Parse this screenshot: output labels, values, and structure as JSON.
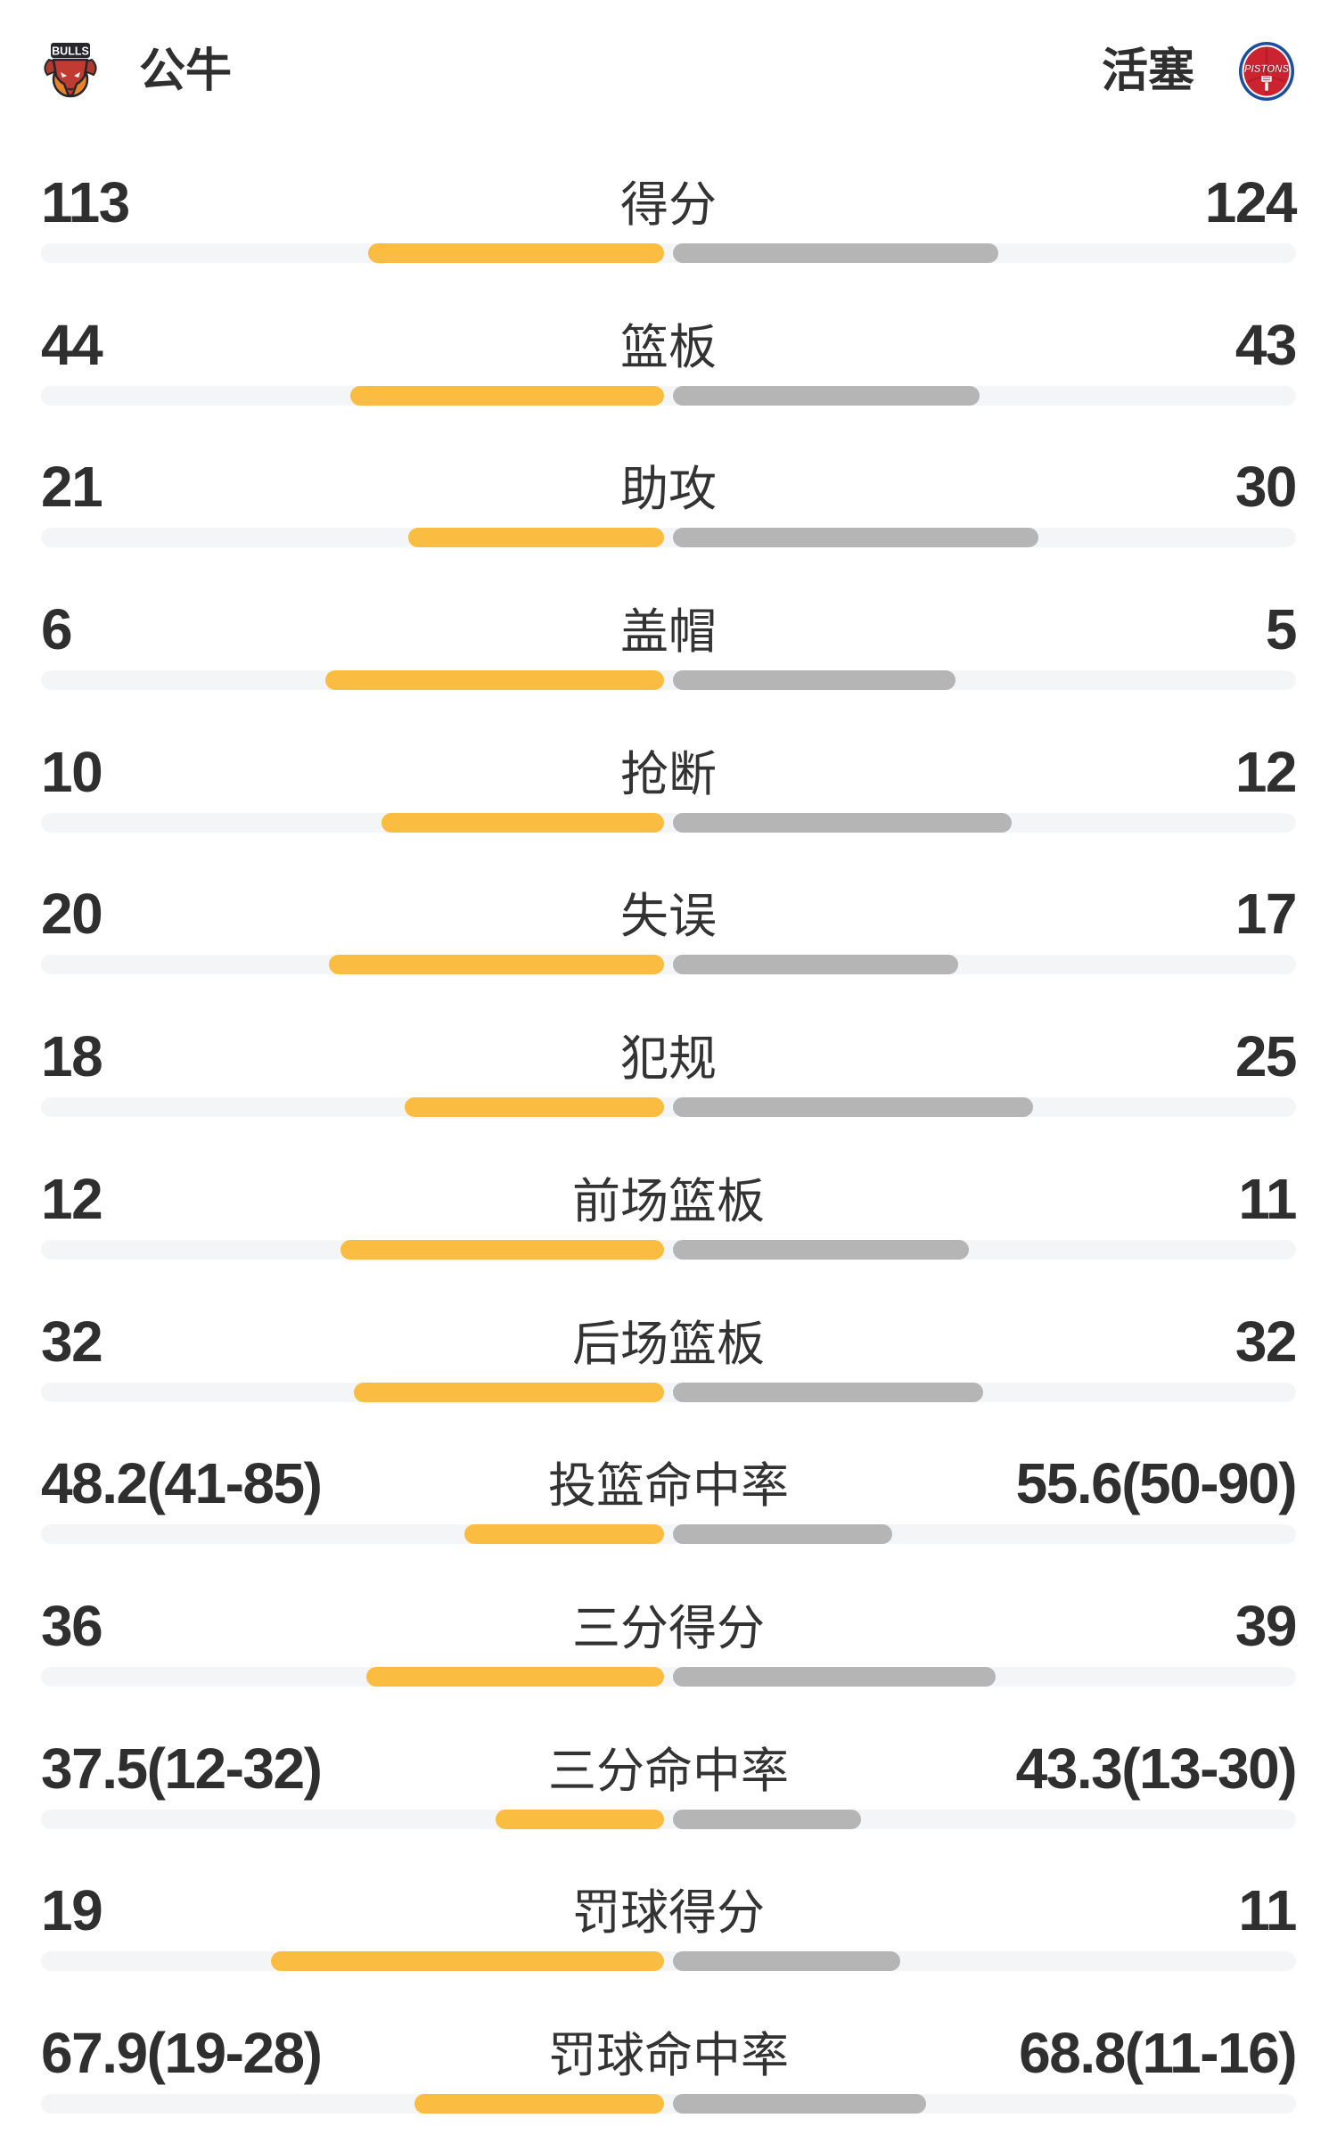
{
  "header": {
    "left_team": {
      "name": "公牛",
      "logo_text": "BULLS"
    },
    "right_team": {
      "name": "活塞",
      "logo_text": "PISTONS"
    }
  },
  "colors": {
    "left_bar": "#fbbd41",
    "right_bar": "#b5b5b5",
    "track": "#f4f5f6",
    "text": "#2f2f2f",
    "bulls_red": "#c13b33",
    "bulls_orange": "#e8832a",
    "bulls_dark": "#26262b",
    "pistons_blue": "#1d4e9e",
    "pistons_red": "#cc2331"
  },
  "chart_data": {
    "type": "bar",
    "layout": "paired horizontal bars diverging from center, left team yellow, right team gray",
    "left_team": "公牛",
    "right_team": "活塞",
    "rows": [
      {
        "label": "得分",
        "left": "113",
        "right": "124",
        "left_value": 113,
        "right_value": 124,
        "left_bar_pct": 23.6,
        "right_bar_pct": 25.9
      },
      {
        "label": "篮板",
        "left": "44",
        "right": "43",
        "left_value": 44,
        "right_value": 43,
        "left_bar_pct": 25.0,
        "right_bar_pct": 24.4
      },
      {
        "label": "助攻",
        "left": "21",
        "right": "30",
        "left_value": 21,
        "right_value": 30,
        "left_bar_pct": 20.4,
        "right_bar_pct": 29.1
      },
      {
        "label": "盖帽",
        "left": "6",
        "right": "5",
        "left_value": 6,
        "right_value": 5,
        "left_bar_pct": 27.0,
        "right_bar_pct": 22.5
      },
      {
        "label": "抢断",
        "left": "10",
        "right": "12",
        "left_value": 10,
        "right_value": 12,
        "left_bar_pct": 22.5,
        "right_bar_pct": 27.0
      },
      {
        "label": "失误",
        "left": "20",
        "right": "17",
        "left_value": 20,
        "right_value": 17,
        "left_bar_pct": 26.7,
        "right_bar_pct": 22.7
      },
      {
        "label": "犯规",
        "left": "18",
        "right": "25",
        "left_value": 18,
        "right_value": 25,
        "left_bar_pct": 20.7,
        "right_bar_pct": 28.7
      },
      {
        "label": "前场篮板",
        "left": "12",
        "right": "11",
        "left_value": 12,
        "right_value": 11,
        "left_bar_pct": 25.8,
        "right_bar_pct": 23.6
      },
      {
        "label": "后场篮板",
        "left": "32",
        "right": "32",
        "left_value": 32,
        "right_value": 32,
        "left_bar_pct": 24.7,
        "right_bar_pct": 24.7
      },
      {
        "label": "投篮命中率",
        "left": "48.2(41-85)",
        "right": "55.6(50-90)",
        "left_value": 48.2,
        "right_value": 55.6,
        "left_bar_pct": 15.9,
        "right_bar_pct": 17.5
      },
      {
        "label": "三分得分",
        "left": "36",
        "right": "39",
        "left_value": 36,
        "right_value": 39,
        "left_bar_pct": 23.7,
        "right_bar_pct": 25.7
      },
      {
        "label": "三分命中率",
        "left": "37.5(12-32)",
        "right": "43.3(13-30)",
        "left_value": 37.5,
        "right_value": 43.3,
        "left_bar_pct": 13.4,
        "right_bar_pct": 15.0
      },
      {
        "label": "罚球得分",
        "left": "19",
        "right": "11",
        "left_value": 19,
        "right_value": 11,
        "left_bar_pct": 31.3,
        "right_bar_pct": 18.1
      },
      {
        "label": "罚球命中率",
        "left": "67.9(19-28)",
        "right": "68.8(11-16)",
        "left_value": 67.9,
        "right_value": 68.8,
        "left_bar_pct": 19.9,
        "right_bar_pct": 20.2
      }
    ]
  }
}
